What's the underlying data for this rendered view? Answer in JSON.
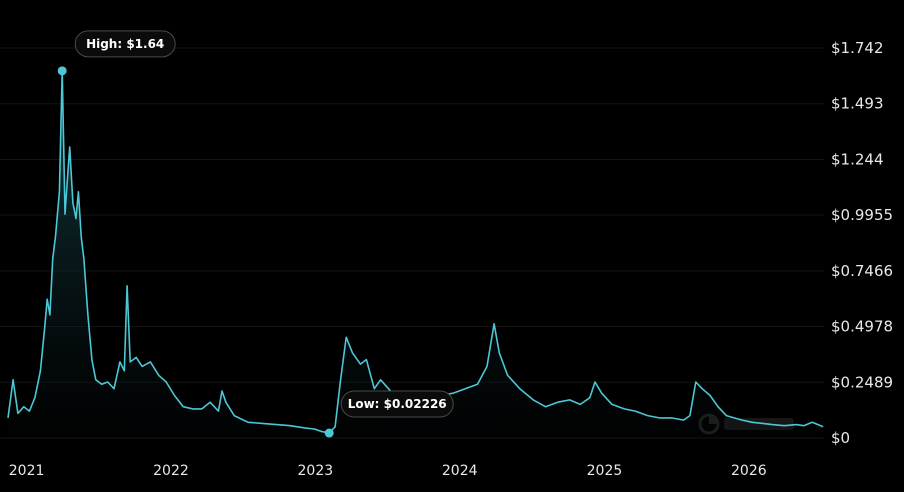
{
  "chart_data": {
    "type": "area",
    "title": "",
    "xlabel": "",
    "ylabel": "",
    "x_range": [
      "2020-11-15",
      "2026-07-10"
    ],
    "ylim": [
      0,
      1.742
    ],
    "y_ticks": [
      {
        "value": 0,
        "label": "$0"
      },
      {
        "value": 0.2489,
        "label": "$0.2489"
      },
      {
        "value": 0.4978,
        "label": "$0.4978"
      },
      {
        "value": 0.7466,
        "label": "$0.7466"
      },
      {
        "value": 0.9955,
        "label": "$0.9955"
      },
      {
        "value": 1.244,
        "label": "$1.244"
      },
      {
        "value": 1.493,
        "label": "$1.493"
      },
      {
        "value": 1.742,
        "label": "$1.742"
      }
    ],
    "x_ticks": [
      {
        "value": "2021-01-01",
        "label": "2021"
      },
      {
        "value": "2022-01-01",
        "label": "2022"
      },
      {
        "value": "2023-01-01",
        "label": "2023"
      },
      {
        "value": "2024-01-01",
        "label": "2024"
      },
      {
        "value": "2025-01-01",
        "label": "2025"
      },
      {
        "value": "2026-01-01",
        "label": "2026"
      }
    ],
    "grid": true,
    "series": [
      {
        "x": [
          "2020-11-15",
          "2020-11-28",
          "2020-12-10",
          "2020-12-25",
          "2021-01-08",
          "2021-01-22",
          "2021-02-05",
          "2021-02-15",
          "2021-02-22",
          "2021-03-01",
          "2021-03-08",
          "2021-03-15",
          "2021-03-25",
          "2021-04-01",
          "2021-04-08",
          "2021-04-16",
          "2021-04-20",
          "2021-04-28",
          "2021-05-06",
          "2021-05-12",
          "2021-05-19",
          "2021-05-26",
          "2021-06-05",
          "2021-06-15",
          "2021-06-25",
          "2021-07-10",
          "2021-07-25",
          "2021-08-10",
          "2021-08-25",
          "2021-09-05",
          "2021-09-12",
          "2021-09-20",
          "2021-10-05",
          "2021-10-20",
          "2021-11-10",
          "2021-12-01",
          "2021-12-20",
          "2022-01-10",
          "2022-02-01",
          "2022-02-25",
          "2022-03-20",
          "2022-04-10",
          "2022-05-01",
          "2022-05-10",
          "2022-05-20",
          "2022-06-10",
          "2022-07-15",
          "2022-08-20",
          "2022-09-25",
          "2022-10-30",
          "2022-12-05",
          "2022-12-30",
          "2023-01-15",
          "2023-02-05",
          "2023-02-20",
          "2023-03-05",
          "2023-03-20",
          "2023-04-05",
          "2023-04-25",
          "2023-05-10",
          "2023-05-30",
          "2023-06-15",
          "2023-07-15",
          "2023-08-15",
          "2023-09-15",
          "2023-10-15",
          "2023-11-15",
          "2023-12-15",
          "2024-01-15",
          "2024-02-15",
          "2024-03-10",
          "2024-03-28",
          "2024-04-10",
          "2024-05-01",
          "2024-06-01",
          "2024-07-05",
          "2024-08-05",
          "2024-09-05",
          "2024-10-05",
          "2024-11-01",
          "2024-11-25",
          "2024-12-08",
          "2024-12-25",
          "2025-01-20",
          "2025-02-20",
          "2025-03-20",
          "2025-04-20",
          "2025-05-20",
          "2025-06-20",
          "2025-07-20",
          "2025-08-05",
          "2025-08-20",
          "2025-09-05",
          "2025-09-25",
          "2025-10-15",
          "2025-11-05",
          "2025-11-25",
          "2025-12-15",
          "2026-01-10",
          "2026-02-05",
          "2026-03-01",
          "2026-04-01",
          "2026-05-01",
          "2026-05-20",
          "2026-06-10",
          "2026-06-25",
          "2026-07-08"
        ],
        "values": [
          0.09,
          0.26,
          0.11,
          0.14,
          0.12,
          0.18,
          0.3,
          0.48,
          0.62,
          0.55,
          0.8,
          0.9,
          1.1,
          1.64,
          1.0,
          1.2,
          1.3,
          1.05,
          0.98,
          1.1,
          0.9,
          0.8,
          0.55,
          0.35,
          0.26,
          0.24,
          0.25,
          0.22,
          0.34,
          0.3,
          0.68,
          0.34,
          0.36,
          0.32,
          0.34,
          0.28,
          0.25,
          0.19,
          0.14,
          0.13,
          0.13,
          0.16,
          0.12,
          0.21,
          0.16,
          0.1,
          0.07,
          0.065,
          0.06,
          0.055,
          0.045,
          0.04,
          0.03,
          0.02226,
          0.05,
          0.25,
          0.45,
          0.38,
          0.33,
          0.35,
          0.22,
          0.26,
          0.2,
          0.15,
          0.16,
          0.15,
          0.19,
          0.2,
          0.22,
          0.24,
          0.32,
          0.51,
          0.38,
          0.28,
          0.22,
          0.17,
          0.14,
          0.16,
          0.17,
          0.15,
          0.18,
          0.25,
          0.2,
          0.15,
          0.13,
          0.12,
          0.1,
          0.09,
          0.09,
          0.08,
          0.1,
          0.25,
          0.22,
          0.19,
          0.14,
          0.1,
          0.09,
          0.08,
          0.07,
          0.065,
          0.06,
          0.055,
          0.06,
          0.055,
          0.07,
          0.06,
          0.05
        ]
      }
    ],
    "annotations": [
      {
        "label": "High: $1.64",
        "x": "2021-04-01",
        "value": 1.64
      },
      {
        "label": "Low: $0.02226",
        "x": "2023-02-05",
        "value": 0.02226
      }
    ],
    "colors": {
      "background": "#000000",
      "line": "#4cc7d6",
      "area_top": "#1a4f57",
      "area_bottom": "#050c0e",
      "marker": "#4cc7d6",
      "annotation_border": "#4a4a4a",
      "text": "#e8e8e8"
    },
    "watermark_icon": "coinstats-logo-icon"
  }
}
